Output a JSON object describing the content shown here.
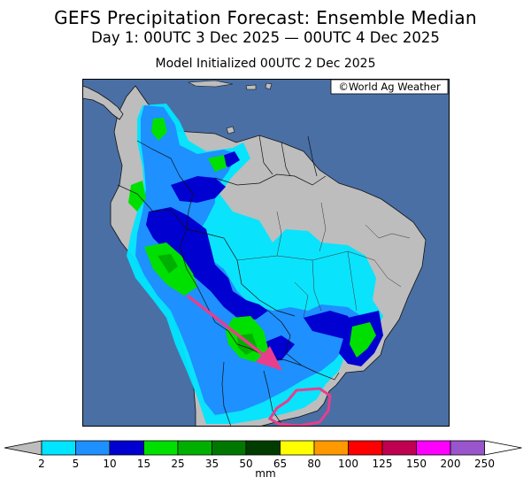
{
  "header": {
    "title": "GEFS Precipitation Forecast: Ensemble Median",
    "period": "Day 1: 00UTC 3 Dec 2025 — 00UTC 4 Dec 2025",
    "initialized": "Model Initialized 00UTC 2 Dec 2025"
  },
  "map": {
    "credit": "©World Ag Weather",
    "ocean_color": "#4a6fa5",
    "land_color": "#bdbdbd"
  },
  "colorbar": {
    "unit": "mm",
    "ticks": [
      "2",
      "5",
      "10",
      "15",
      "25",
      "35",
      "50",
      "65",
      "80",
      "100",
      "125",
      "150",
      "200",
      "250"
    ],
    "colors": [
      "#00e5ff",
      "#1e90ff",
      "#0000d0",
      "#00e000",
      "#00b000",
      "#007800",
      "#003c00",
      "#ffff00",
      "#ff9900",
      "#ff0000",
      "#c00050",
      "#ff00ff",
      "#9955cc"
    ],
    "end_color": "#bdbdbd"
  },
  "annotations": {
    "arrow_color": "#e83e8c",
    "circle_color": "#e83e8c"
  }
}
